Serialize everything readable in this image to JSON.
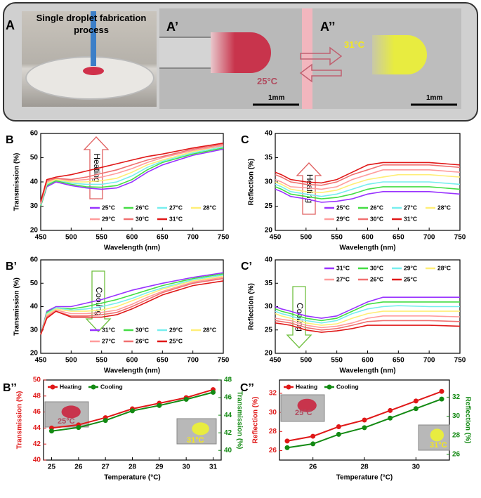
{
  "header": {
    "panels": [
      {
        "label": "A",
        "caption": "Single droplet fabrication process"
      },
      {
        "label": "A’"
      },
      {
        "label": "A’’"
      }
    ],
    "annotations": [
      "31°C",
      "25°C"
    ],
    "scale_bars": [
      "1mm",
      "1mm"
    ]
  },
  "chart_data": [
    {
      "type": "line",
      "panel_label": "B",
      "xlabel": "Wavelength (nm)",
      "ylabel": "Transmission (%)",
      "annotation": "Heating",
      "xlim": [
        450,
        750
      ],
      "xticks": [
        450,
        500,
        550,
        600,
        650,
        700,
        750
      ],
      "ylim": [
        20,
        60
      ],
      "yticks": [
        20,
        30,
        40,
        50,
        60
      ],
      "x": [
        450,
        460,
        475,
        500,
        525,
        550,
        575,
        600,
        625,
        650,
        700,
        750
      ],
      "series": [
        {
          "name": "25°C",
          "color": "#9933ff",
          "values": [
            30,
            38,
            40,
            38.5,
            37.5,
            37,
            37.5,
            40,
            44,
            47,
            51,
            53.5
          ]
        },
        {
          "name": "26°C",
          "color": "#44dd44",
          "values": [
            30,
            38.5,
            40.5,
            39,
            38,
            37.8,
            38.5,
            41,
            45,
            48,
            51.5,
            54
          ]
        },
        {
          "name": "27°C",
          "color": "#77eeee",
          "values": [
            30.5,
            39,
            41,
            39.5,
            39,
            39,
            40,
            42.5,
            46,
            48.5,
            52,
            54.5
          ]
        },
        {
          "name": "28°C",
          "color": "#ffee77",
          "values": [
            31,
            39.5,
            41,
            40,
            40,
            40.5,
            41.5,
            44,
            47,
            49,
            52.5,
            55
          ]
        },
        {
          "name": "29°C",
          "color": "#ff9c9c",
          "values": [
            31,
            40,
            41.5,
            40.5,
            41,
            42,
            43.5,
            45.5,
            48,
            50,
            53,
            55
          ]
        },
        {
          "name": "30°C",
          "color": "#f07070",
          "values": [
            31.5,
            40.5,
            41.5,
            41,
            42,
            43.5,
            45,
            47,
            49,
            50.5,
            53.5,
            55.5
          ]
        },
        {
          "name": "31°C",
          "color": "#e01818",
          "values": [
            32,
            41,
            42,
            43,
            44.5,
            46,
            47.5,
            49,
            50.5,
            51.5,
            54,
            56
          ]
        }
      ]
    },
    {
      "type": "line",
      "panel_label": "C",
      "xlabel": "Wavelength (nm)",
      "ylabel": "Reflection (%)",
      "annotation": "Heating",
      "xlim": [
        450,
        750
      ],
      "xticks": [
        450,
        500,
        550,
        600,
        650,
        700,
        750
      ],
      "ylim": [
        20,
        40
      ],
      "yticks": [
        20,
        25,
        30,
        35,
        40
      ],
      "x": [
        450,
        460,
        475,
        500,
        525,
        550,
        575,
        600,
        625,
        650,
        700,
        750
      ],
      "series": [
        {
          "name": "25°C",
          "color": "#9933ff",
          "values": [
            28.5,
            28,
            27,
            26.5,
            25.8,
            26,
            26.5,
            27.5,
            28,
            28,
            28,
            27.5
          ]
        },
        {
          "name": "26°C",
          "color": "#44dd44",
          "values": [
            29,
            28.5,
            27.5,
            27,
            26.5,
            26.8,
            27.5,
            28.5,
            29,
            29,
            29,
            28.5
          ]
        },
        {
          "name": "27°C",
          "color": "#77eeee",
          "values": [
            29.5,
            29,
            28,
            27.5,
            27,
            27.5,
            28.5,
            29.5,
            30,
            30,
            30,
            29.5
          ]
        },
        {
          "name": "28°C",
          "color": "#ffee77",
          "values": [
            30,
            29.5,
            28.5,
            28,
            27.8,
            28.3,
            29.5,
            30.5,
            31,
            31.5,
            31.5,
            31
          ]
        },
        {
          "name": "29°C",
          "color": "#ff9c9c",
          "values": [
            30.5,
            30,
            29,
            28.8,
            28.5,
            29,
            30.5,
            31.5,
            32.5,
            32.5,
            32.5,
            32
          ]
        },
        {
          "name": "30°C",
          "color": "#f07070",
          "values": [
            31.5,
            31,
            30,
            29.5,
            29.3,
            30,
            31.5,
            32.5,
            33.5,
            33.5,
            33.5,
            33
          ]
        },
        {
          "name": "31°C",
          "color": "#e01818",
          "values": [
            32,
            31.5,
            30.5,
            30,
            29.8,
            30.5,
            32,
            33.5,
            34,
            34,
            34,
            33.5
          ]
        }
      ]
    },
    {
      "type": "line",
      "panel_label": "B’",
      "xlabel": "Wavelength (nm)",
      "ylabel": "Transmission (%)",
      "annotation": "Cooling",
      "xlim": [
        450,
        750
      ],
      "xticks": [
        450,
        500,
        550,
        600,
        650,
        700,
        750
      ],
      "ylim": [
        20,
        60
      ],
      "yticks": [
        20,
        30,
        40,
        50,
        60
      ],
      "x": [
        450,
        460,
        475,
        500,
        525,
        550,
        575,
        600,
        625,
        650,
        700,
        750
      ],
      "series": [
        {
          "name": "31°C",
          "color": "#9933ff",
          "values": [
            28,
            38,
            40,
            40,
            41.5,
            43,
            45,
            47,
            48.5,
            50,
            52.5,
            54.5
          ]
        },
        {
          "name": "30°C",
          "color": "#44dd44",
          "values": [
            28,
            37.5,
            39.5,
            39,
            40,
            41.5,
            43,
            45,
            47,
            49,
            52,
            54
          ]
        },
        {
          "name": "29°C",
          "color": "#77eeee",
          "values": [
            28,
            37,
            39.5,
            38.5,
            39,
            40,
            41.5,
            43.5,
            46,
            48,
            51.5,
            53.5
          ]
        },
        {
          "name": "28°C",
          "color": "#ffee77",
          "values": [
            28,
            36.5,
            39,
            38,
            38,
            38.5,
            40,
            42.5,
            45,
            47.5,
            51,
            53
          ]
        },
        {
          "name": "27°C",
          "color": "#ff9c9c",
          "values": [
            28,
            36,
            38.5,
            37,
            37,
            37.5,
            38.5,
            41,
            44,
            46.5,
            50.5,
            52.5
          ]
        },
        {
          "name": "26°C",
          "color": "#f07070",
          "values": [
            28,
            35.5,
            38,
            36,
            36,
            36.5,
            37.5,
            40,
            43,
            46,
            50,
            52
          ]
        },
        {
          "name": "25°C",
          "color": "#e01818",
          "values": [
            28,
            35,
            38,
            35.5,
            35.5,
            35.5,
            36.5,
            39,
            42,
            45,
            49,
            51
          ]
        }
      ]
    },
    {
      "type": "line",
      "panel_label": "C’",
      "xlabel": "Wavelength (nm)",
      "ylabel": "Reflection (%)",
      "annotation": "Cooling",
      "xlim": [
        450,
        750
      ],
      "xticks": [
        450,
        500,
        550,
        600,
        650,
        700,
        750
      ],
      "ylim": [
        20,
        40
      ],
      "yticks": [
        20,
        25,
        30,
        35,
        40
      ],
      "x": [
        450,
        460,
        475,
        500,
        525,
        550,
        575,
        600,
        625,
        650,
        700,
        750
      ],
      "series": [
        {
          "name": "31°C",
          "color": "#9933ff",
          "values": [
            30,
            29.5,
            29,
            28,
            27.5,
            28,
            29.5,
            31,
            32,
            32,
            32,
            32
          ]
        },
        {
          "name": "30°C",
          "color": "#44dd44",
          "values": [
            29.5,
            29,
            28.5,
            27.5,
            27,
            27.5,
            29,
            30.5,
            31,
            31,
            31,
            31
          ]
        },
        {
          "name": "29°C",
          "color": "#77eeee",
          "values": [
            29,
            28.5,
            28,
            27,
            26.5,
            27,
            28.5,
            29.5,
            30,
            30.2,
            30,
            30
          ]
        },
        {
          "name": "28°C",
          "color": "#ffee77",
          "values": [
            28.5,
            28,
            27.5,
            26.5,
            26,
            26.3,
            27.5,
            28.5,
            29,
            29,
            29,
            29
          ]
        },
        {
          "name": "27°C",
          "color": "#ff9c9c",
          "values": [
            27.5,
            27.3,
            27,
            26,
            25.5,
            25.8,
            26.5,
            27.5,
            28,
            28,
            28,
            27.8
          ]
        },
        {
          "name": "26°C",
          "color": "#f07070",
          "values": [
            27,
            26.8,
            26.5,
            25.5,
            25,
            25.3,
            26,
            26.8,
            27,
            27,
            27,
            26.8
          ]
        },
        {
          "name": "25°C",
          "color": "#e01818",
          "values": [
            26.5,
            26.3,
            26,
            25,
            24.5,
            24.8,
            25.3,
            26,
            26,
            26,
            26,
            25.8
          ]
        }
      ]
    },
    {
      "type": "line",
      "panel_label": "B’’",
      "markers": true,
      "xlabel": "Temperature (°C)",
      "ylabel": "Transmission (%)",
      "y2label": "Transmission (%)",
      "annotations": [
        "25°C",
        "31°C"
      ],
      "xlim": [
        24.7,
        31.3
      ],
      "xticks": [
        25,
        26,
        27,
        28,
        29,
        30,
        31
      ],
      "ylim": [
        40,
        50
      ],
      "yticks": [
        40,
        42,
        44,
        46,
        48,
        50
      ],
      "y2lim": [
        38.9,
        48
      ],
      "y2ticks": [
        40,
        42,
        44,
        46,
        48
      ],
      "x": [
        25,
        26,
        27,
        28,
        29,
        30,
        31
      ],
      "series": [
        {
          "name": "Heating",
          "color": "#e01818",
          "values": [
            44.0,
            44.4,
            45.3,
            46.4,
            47.1,
            47.8,
            48.8
          ]
        },
        {
          "name": "Cooling",
          "color": "#138a13",
          "axis": "y2",
          "values": [
            42.2,
            42.6,
            43.4,
            44.5,
            45.1,
            45.8,
            46.6
          ]
        }
      ]
    },
    {
      "type": "line",
      "panel_label": "C’’",
      "markers": true,
      "xlabel": "Temperature (°C)",
      "ylabel": "Reflection (%)",
      "y2label": "Reflection (%)",
      "annotations": [
        "25°C",
        "31°C"
      ],
      "xlim": [
        24.7,
        31.3
      ],
      "xticks": [
        26,
        28,
        30
      ],
      "ylim": [
        25,
        33.4
      ],
      "yticks": [
        26,
        28,
        30,
        32
      ],
      "y2lim": [
        25.4,
        33.8
      ],
      "y2ticks": [
        26,
        28,
        30,
        32
      ],
      "x": [
        25,
        26,
        27,
        28,
        29,
        30,
        31
      ],
      "series": [
        {
          "name": "Heating",
          "color": "#e01818",
          "values": [
            27.0,
            27.5,
            28.5,
            29.2,
            30.2,
            31.2,
            32.2
          ]
        },
        {
          "name": "Cooling",
          "color": "#138a13",
          "axis": "y2",
          "values": [
            26.7,
            27.1,
            28.1,
            28.8,
            29.8,
            30.8,
            31.8
          ]
        }
      ]
    }
  ]
}
